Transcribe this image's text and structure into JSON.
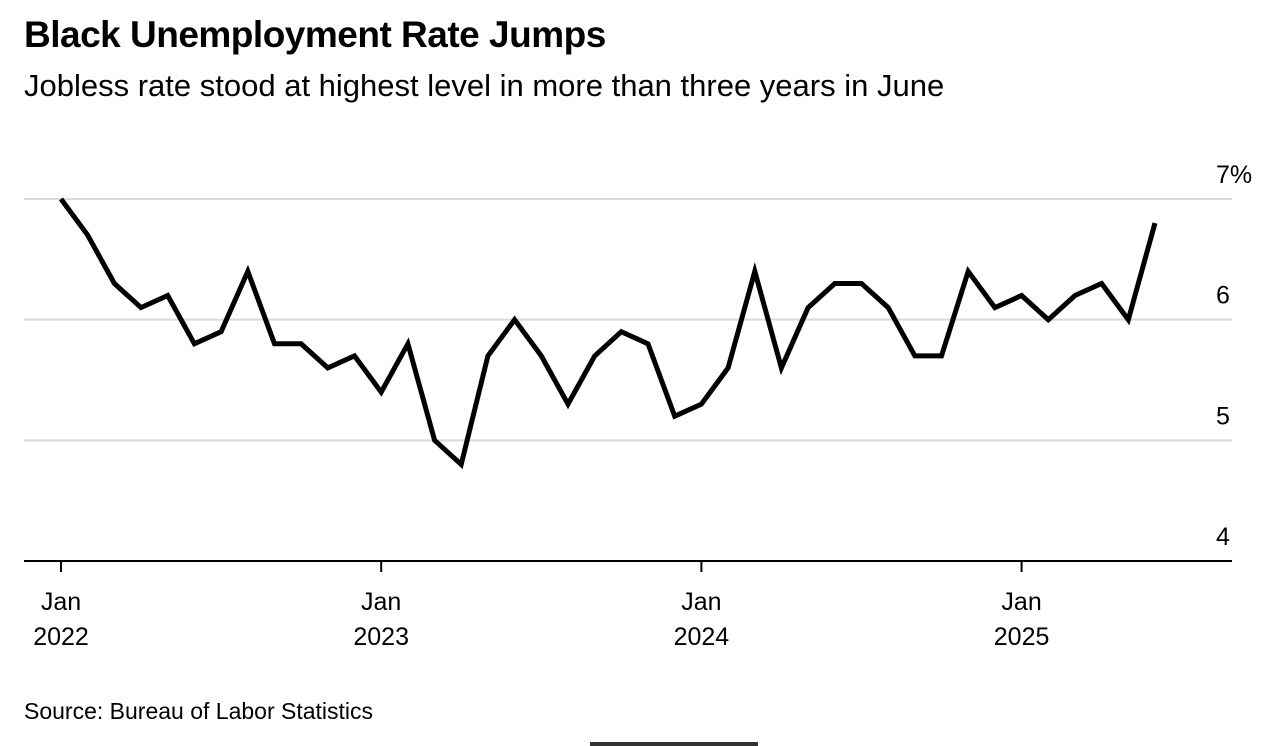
{
  "header": {
    "title": "Black Unemployment Rate Jumps",
    "subtitle": "Jobless rate stood at highest level in more than three years in June"
  },
  "footer": {
    "source": "Source: Bureau of Labor Statistics"
  },
  "chart_data": {
    "type": "line",
    "title": "Black Unemployment Rate Jumps",
    "subtitle": "Jobless rate stood at highest level in more than three years in June",
    "xlabel": "",
    "ylabel": "",
    "ylim": [
      4,
      7
    ],
    "y_ticks": [
      {
        "value": 4,
        "label": "4"
      },
      {
        "value": 5,
        "label": "5"
      },
      {
        "value": 6,
        "label": "6"
      },
      {
        "value": 7,
        "label": "7%"
      }
    ],
    "x_ticks": [
      {
        "date": "2022-01",
        "month": "Jan",
        "year": "2022"
      },
      {
        "date": "2023-01",
        "month": "Jan",
        "year": "2023"
      },
      {
        "date": "2024-01",
        "month": "Jan",
        "year": "2024"
      },
      {
        "date": "2025-01",
        "month": "Jan",
        "year": "2025"
      }
    ],
    "x_range": [
      "2022-01",
      "2025-06"
    ],
    "grid": true,
    "legend": "none",
    "line_color": "#000000",
    "grid_color": "#d9d9d9",
    "series": [
      {
        "x": [
          "2022-01",
          "2022-02",
          "2022-03",
          "2022-04",
          "2022-05",
          "2022-06",
          "2022-07",
          "2022-08",
          "2022-09",
          "2022-10",
          "2022-11",
          "2022-12",
          "2023-01",
          "2023-02",
          "2023-03",
          "2023-04",
          "2023-05",
          "2023-06",
          "2023-07",
          "2023-08",
          "2023-09",
          "2023-10",
          "2023-11",
          "2023-12",
          "2024-01",
          "2024-02",
          "2024-03",
          "2024-04",
          "2024-05",
          "2024-06",
          "2024-07",
          "2024-08",
          "2024-09",
          "2024-10",
          "2024-11",
          "2024-12",
          "2025-01",
          "2025-02",
          "2025-03",
          "2025-04",
          "2025-05",
          "2025-06"
        ],
        "values": [
          7.0,
          6.7,
          6.3,
          6.1,
          6.2,
          5.8,
          5.9,
          6.4,
          5.8,
          5.8,
          5.6,
          5.7,
          5.4,
          5.8,
          5.0,
          4.8,
          5.7,
          6.0,
          5.7,
          5.3,
          5.7,
          5.9,
          5.8,
          5.2,
          5.3,
          5.6,
          6.4,
          5.6,
          6.1,
          6.3,
          6.3,
          6.1,
          5.7,
          5.7,
          6.4,
          6.1,
          6.2,
          6.0,
          6.2,
          6.3,
          6.0,
          6.8
        ]
      }
    ]
  }
}
